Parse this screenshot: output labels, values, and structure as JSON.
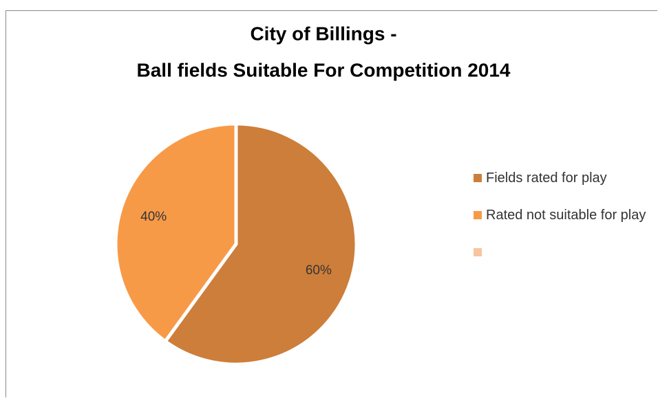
{
  "chart_data": {
    "type": "pie",
    "title": [
      "City of Billings -",
      "Ball fields Suitable For Competition 2014"
    ],
    "categories": [
      "Fields rated for play",
      "Rated not suitable for play",
      null
    ],
    "values": [
      60,
      40,
      0
    ],
    "value_labels": [
      "60%",
      "40%",
      null
    ],
    "colors": [
      "#cd7e3a",
      "#f79a48",
      "#f9c4a0"
    ],
    "legend": "right"
  }
}
